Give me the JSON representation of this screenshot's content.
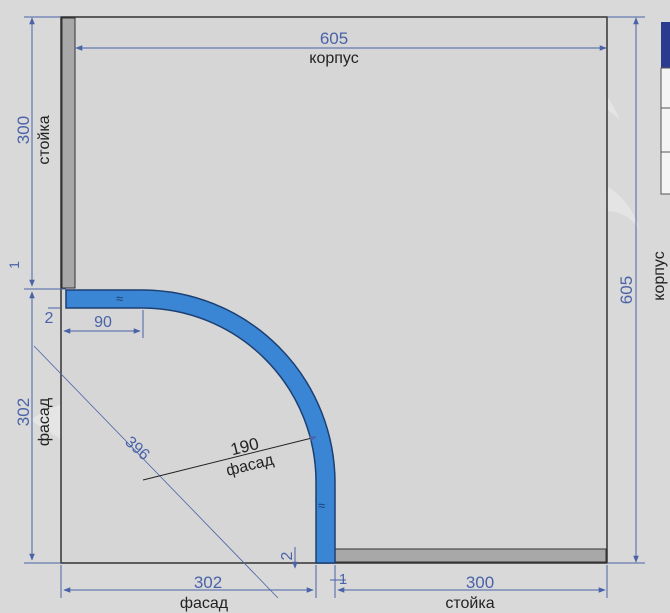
{
  "colors": {
    "background": "#d9d9d9",
    "panel": "#d4d4d4",
    "outline": "#333333",
    "facade_fill": "#3a86d4",
    "dimension_text": "#4a63a8",
    "dimension_line": "#4a63a8",
    "legend_header": "#2a3a8c"
  },
  "dimensions": {
    "korpus_width": "605",
    "korpus_width_label": "корпус",
    "korpus_height": "605",
    "korpus_height_label": "корпус",
    "stoika_top": "300",
    "stoika_top_label": "стойка",
    "facade_left": "302",
    "facade_left_label": "фасад",
    "facade_bottom": "302",
    "facade_bottom_label": "фасад",
    "stoika_bottom": "300",
    "stoika_bottom_label": "стойка",
    "diagonal": "396",
    "radius": "190",
    "radius_label": "фасад",
    "gap_top_left": "2",
    "offset_top": "90",
    "thickness_top": "1",
    "gap_bottom": "2",
    "thickness_bottom": "1"
  }
}
